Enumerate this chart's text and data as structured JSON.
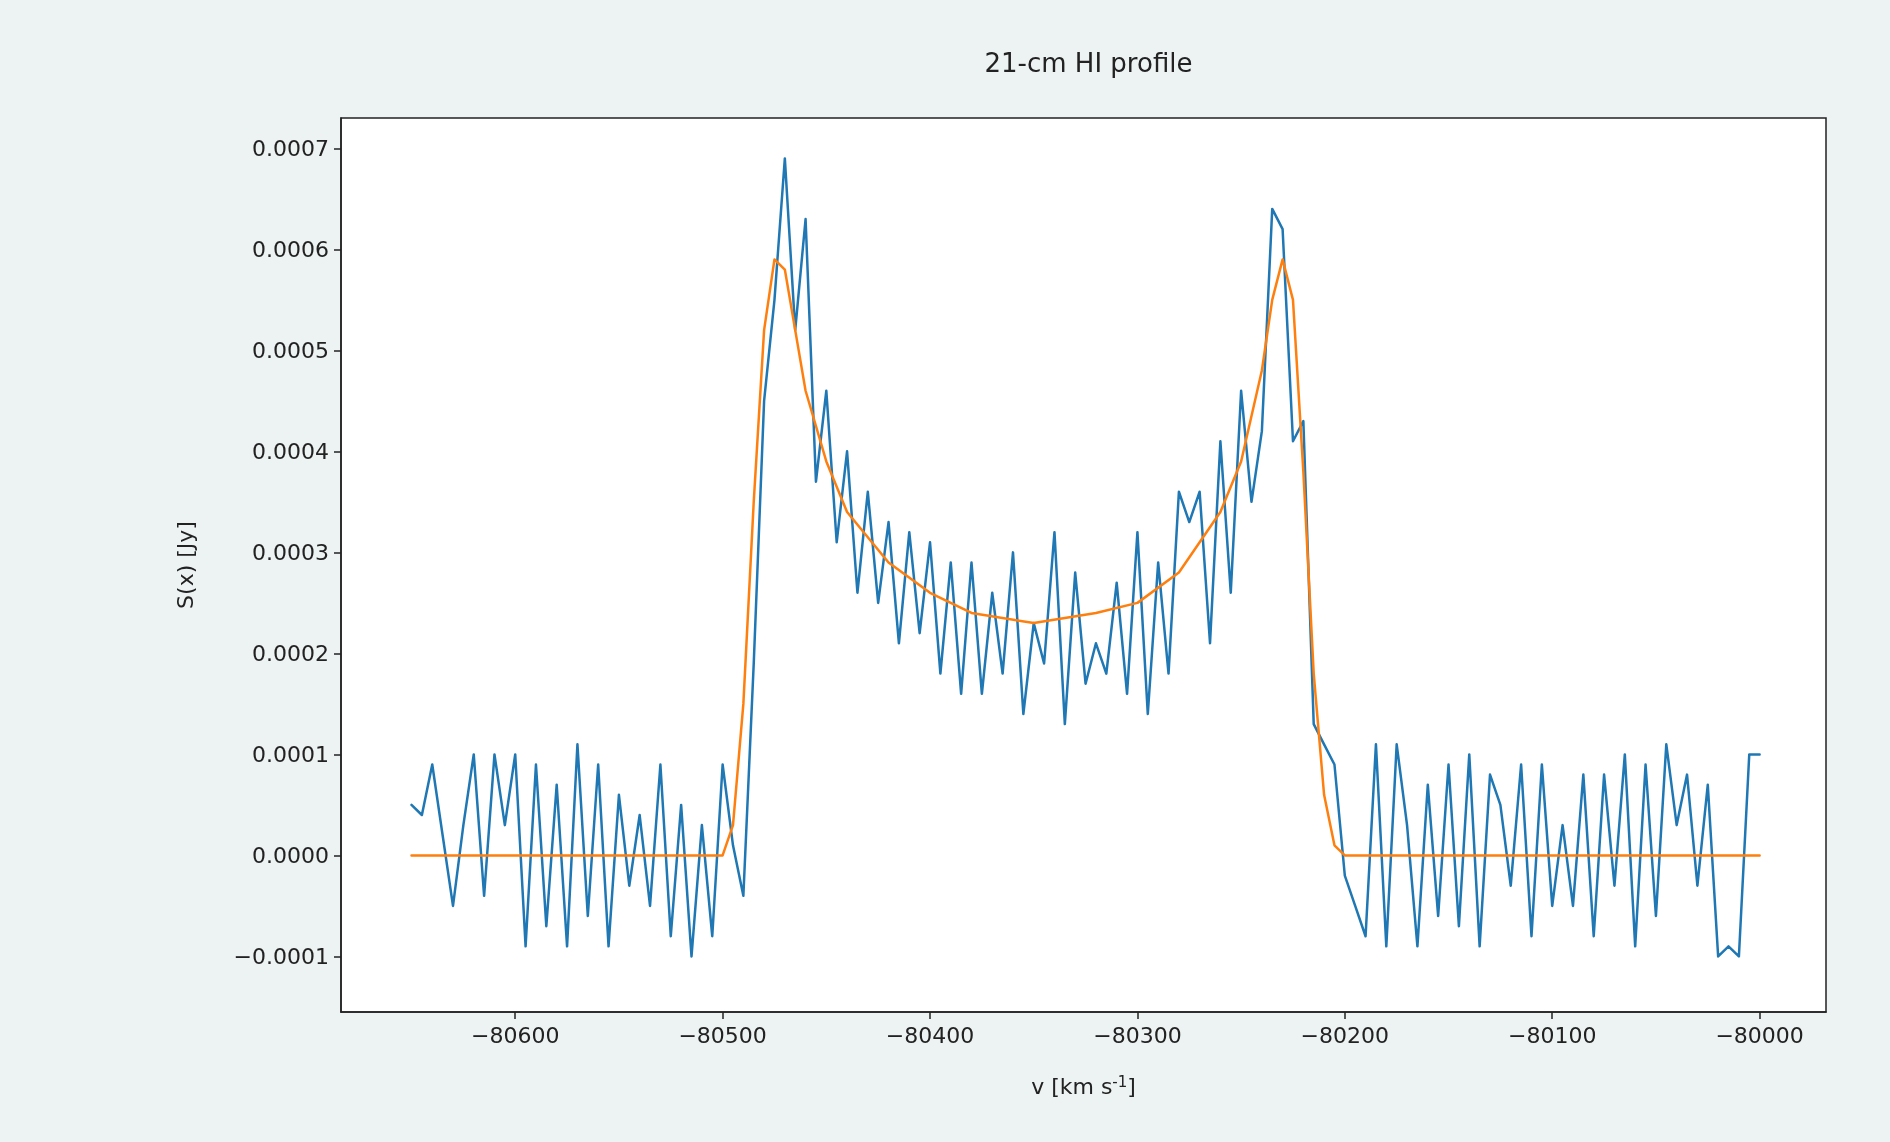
{
  "chart_data": {
    "type": "line",
    "title": "21-cm HI profile",
    "xlabel": "v [km s$^{-1}$]",
    "ylabel": "S(x) [Jy]",
    "xlim": [
      -80684,
      -79968
    ],
    "xticks": [
      {
        "value": -80600,
        "label": "−80600"
      },
      {
        "value": -80500,
        "label": "−80500"
      },
      {
        "value": -80400,
        "label": "−80400"
      },
      {
        "value": -80300,
        "label": "−80300"
      },
      {
        "value": -80200,
        "label": "−80200"
      },
      {
        "value": -80100,
        "label": "−80100"
      },
      {
        "value": -80000,
        "label": "−80000"
      }
    ],
    "ylim": [
      -0.000155,
      0.00073
    ],
    "yticks": [
      {
        "value": -0.0001,
        "label": "−0.0001"
      },
      {
        "value": 0,
        "label": "0.0000"
      },
      0.0001,
      0.0002,
      0.0003,
      0.0004,
      0.0005,
      0.0006,
      0.0007
    ],
    "grid": false,
    "marker": "none",
    "line_style": "solid",
    "series": [
      {
        "color": "#1f77b4",
        "x": [
          -80650,
          -80645,
          -80640,
          -80635,
          -80630,
          -80625,
          -80620,
          -80615,
          -80610,
          -80605,
          -80600,
          -80595,
          -80590,
          -80585,
          -80580,
          -80575,
          -80570,
          -80565,
          -80560,
          -80555,
          -80550,
          -80545,
          -80540,
          -80535,
          -80530,
          -80525,
          -80520,
          -80515,
          -80510,
          -80505,
          -80500,
          -80495,
          -80490,
          -80485,
          -80480,
          -80475,
          -80470,
          -80465,
          -80460,
          -80455,
          -80450,
          -80445,
          -80440,
          -80435,
          -80430,
          -80425,
          -80420,
          -80415,
          -80410,
          -80405,
          -80400,
          -80395,
          -80390,
          -80385,
          -80380,
          -80375,
          -80370,
          -80365,
          -80360,
          -80355,
          -80350,
          -80345,
          -80340,
          -80335,
          -80330,
          -80325,
          -80320,
          -80315,
          -80310,
          -80305,
          -80300,
          -80295,
          -80290,
          -80285,
          -80280,
          -80275,
          -80270,
          -80265,
          -80260,
          -80255,
          -80250,
          -80245,
          -80240,
          -80235,
          -80230,
          -80225,
          -80220,
          -80215,
          -80210,
          -80205,
          -80200,
          -80195,
          -80190,
          -80185,
          -80180,
          -80175,
          -80170,
          -80165,
          -80160,
          -80155,
          -80150,
          -80145,
          -80140,
          -80135,
          -80130,
          -80125,
          -80120,
          -80115,
          -80110,
          -80105,
          -80100,
          -80095,
          -80090,
          -80085,
          -80080,
          -80075,
          -80070,
          -80065,
          -80060,
          -80055,
          -80050,
          -80045,
          -80040,
          -80035,
          -80030,
          -80025,
          -80020,
          -80015,
          -80010,
          -80005,
          -80000
        ],
        "values": [
          5e-05,
          4e-05,
          9e-05,
          2e-05,
          -5e-05,
          3e-05,
          0.0001,
          -4e-05,
          0.0001,
          3e-05,
          0.0001,
          -9e-05,
          9e-05,
          -7e-05,
          7e-05,
          -9e-05,
          0.00011,
          -6e-05,
          9e-05,
          -9e-05,
          6e-05,
          -3e-05,
          4e-05,
          -5e-05,
          9e-05,
          -8e-05,
          5e-05,
          -0.0001,
          3e-05,
          -8e-05,
          9e-05,
          1e-05,
          -4e-05,
          0.00019,
          0.00045,
          0.00055,
          0.00069,
          0.00052,
          0.00063,
          0.00037,
          0.00046,
          0.00031,
          0.0004,
          0.00026,
          0.00036,
          0.00025,
          0.00033,
          0.00021,
          0.00032,
          0.00022,
          0.00031,
          0.00018,
          0.00029,
          0.00016,
          0.00029,
          0.00016,
          0.00026,
          0.00018,
          0.0003,
          0.00014,
          0.00023,
          0.00019,
          0.00032,
          0.00013,
          0.00028,
          0.00017,
          0.00021,
          0.00018,
          0.00027,
          0.00016,
          0.00032,
          0.00014,
          0.00029,
          0.00018,
          0.00036,
          0.00033,
          0.00036,
          0.00021,
          0.00041,
          0.00026,
          0.00046,
          0.00035,
          0.00042,
          0.00064,
          0.00062,
          0.00041,
          0.00043,
          0.00013,
          0.00011,
          9e-05,
          -2e-05,
          -5e-05,
          -8e-05,
          0.00011,
          -9e-05,
          0.00011,
          3e-05,
          -9e-05,
          7e-05,
          -6e-05,
          9e-05,
          -7e-05,
          0.0001,
          -9e-05,
          8e-05,
          5e-05,
          -3e-05,
          9e-05,
          -8e-05,
          9e-05,
          -5e-05,
          3e-05,
          -5e-05,
          8e-05,
          -8e-05,
          8e-05,
          -3e-05,
          0.0001,
          -9e-05,
          9e-05,
          -6e-05,
          0.00011,
          3e-05,
          8e-05,
          -3e-05,
          7e-05,
          -0.0001,
          -9e-05,
          -0.0001,
          0.0001,
          0.0001
        ]
      },
      {
        "color": "#ff7f0e",
        "x": [
          -80650,
          -80600,
          -80550,
          -80510,
          -80500,
          -80495,
          -80490,
          -80485,
          -80480,
          -80475,
          -80470,
          -80465,
          -80460,
          -80450,
          -80440,
          -80420,
          -80400,
          -80380,
          -80350,
          -80320,
          -80300,
          -80280,
          -80260,
          -80250,
          -80240,
          -80235,
          -80230,
          -80225,
          -80220,
          -80215,
          -80210,
          -80205,
          -80200,
          -80150,
          -80100,
          -80050,
          -80000
        ],
        "values": [
          0,
          0,
          0,
          0,
          0,
          3e-05,
          0.00015,
          0.00035,
          0.00052,
          0.00059,
          0.00058,
          0.00052,
          0.00046,
          0.00039,
          0.00034,
          0.00029,
          0.00026,
          0.00024,
          0.00023,
          0.00024,
          0.00025,
          0.00028,
          0.00034,
          0.00039,
          0.00048,
          0.00055,
          0.00059,
          0.00055,
          0.00038,
          0.00018,
          6e-05,
          1e-05,
          0,
          0,
          0,
          0,
          0
        ]
      }
    ]
  }
}
